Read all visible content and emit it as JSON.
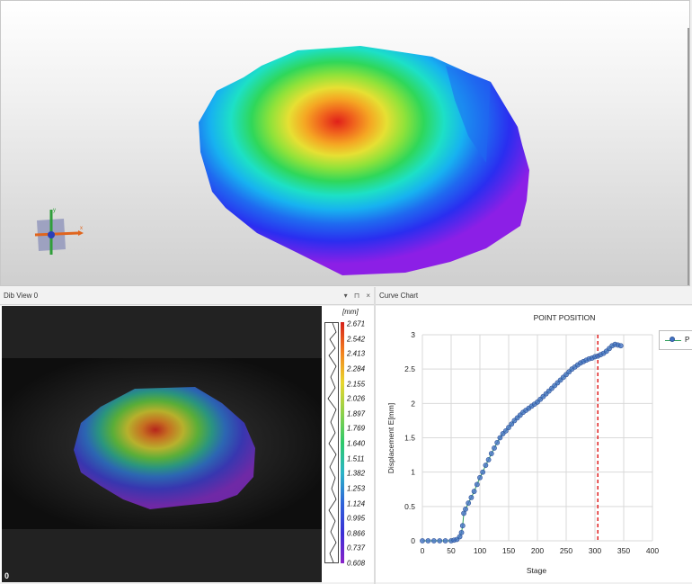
{
  "panels": {
    "dib_view": {
      "title": "Dib View 0",
      "frame_label": "0",
      "controls": [
        "▾",
        "⊓",
        "×"
      ]
    },
    "curve_chart": {
      "title": "Curve Chart"
    }
  },
  "colorbar": {
    "unit": "[mm]",
    "ticks": [
      "2.671",
      "2.542",
      "2.413",
      "2.284",
      "2.155",
      "2.026",
      "1.897",
      "1.769",
      "1.640",
      "1.511",
      "1.382",
      "1.253",
      "1.124",
      "0.995",
      "0.866",
      "0.737",
      "0.608"
    ],
    "colors": {
      "max": "#d6211a",
      "min": "#8a23c9"
    }
  },
  "gizmo": {
    "x_label": "x",
    "y_label": "y",
    "colors": {
      "x": "#e0651e",
      "y": "#2f9e3a",
      "z": "#2a3fb8"
    }
  },
  "chart_data": {
    "type": "line",
    "title": "POINT POSITION",
    "xlabel": "Stage",
    "ylabel": "Displacement E[mm]",
    "xlim": [
      0,
      400
    ],
    "ylim": [
      0,
      3
    ],
    "x_ticks": [
      "0",
      "50",
      "100",
      "150",
      "200",
      "250",
      "300",
      "350",
      "400"
    ],
    "y_ticks": [
      "0",
      "0.5",
      "1",
      "1.5",
      "2",
      "2.5",
      "3"
    ],
    "grid": true,
    "legend": {
      "label": "P",
      "placement": "right"
    },
    "series_color": "#4472c4",
    "series_line_color": "#2e9e59",
    "marker_line": {
      "x": 305,
      "color": "#e02020"
    },
    "points": [
      [
        0,
        0
      ],
      [
        10,
        0
      ],
      [
        20,
        0
      ],
      [
        30,
        0
      ],
      [
        40,
        0
      ],
      [
        50,
        0
      ],
      [
        55,
        0.01
      ],
      [
        60,
        0.02
      ],
      [
        65,
        0.06
      ],
      [
        68,
        0.12
      ],
      [
        70,
        0.22
      ],
      [
        72,
        0.4
      ],
      [
        75,
        0.46
      ],
      [
        80,
        0.55
      ],
      [
        85,
        0.63
      ],
      [
        90,
        0.72
      ],
      [
        95,
        0.82
      ],
      [
        100,
        0.92
      ],
      [
        105,
        1.0
      ],
      [
        110,
        1.1
      ],
      [
        115,
        1.18
      ],
      [
        120,
        1.27
      ],
      [
        125,
        1.35
      ],
      [
        130,
        1.43
      ],
      [
        135,
        1.5
      ],
      [
        140,
        1.56
      ],
      [
        145,
        1.6
      ],
      [
        150,
        1.65
      ],
      [
        155,
        1.7
      ],
      [
        160,
        1.75
      ],
      [
        165,
        1.79
      ],
      [
        170,
        1.83
      ],
      [
        175,
        1.87
      ],
      [
        180,
        1.9
      ],
      [
        185,
        1.93
      ],
      [
        190,
        1.96
      ],
      [
        195,
        1.99
      ],
      [
        200,
        2.02
      ],
      [
        205,
        2.06
      ],
      [
        210,
        2.1
      ],
      [
        215,
        2.14
      ],
      [
        220,
        2.18
      ],
      [
        225,
        2.22
      ],
      [
        230,
        2.26
      ],
      [
        235,
        2.3
      ],
      [
        240,
        2.34
      ],
      [
        245,
        2.38
      ],
      [
        250,
        2.42
      ],
      [
        255,
        2.46
      ],
      [
        260,
        2.5
      ],
      [
        265,
        2.53
      ],
      [
        270,
        2.56
      ],
      [
        275,
        2.59
      ],
      [
        280,
        2.61
      ],
      [
        285,
        2.63
      ],
      [
        290,
        2.65
      ],
      [
        295,
        2.66
      ],
      [
        300,
        2.68
      ],
      [
        305,
        2.69
      ],
      [
        310,
        2.71
      ],
      [
        315,
        2.73
      ],
      [
        320,
        2.76
      ],
      [
        325,
        2.8
      ],
      [
        330,
        2.84
      ],
      [
        335,
        2.86
      ],
      [
        340,
        2.85
      ],
      [
        345,
        2.84
      ]
    ]
  }
}
